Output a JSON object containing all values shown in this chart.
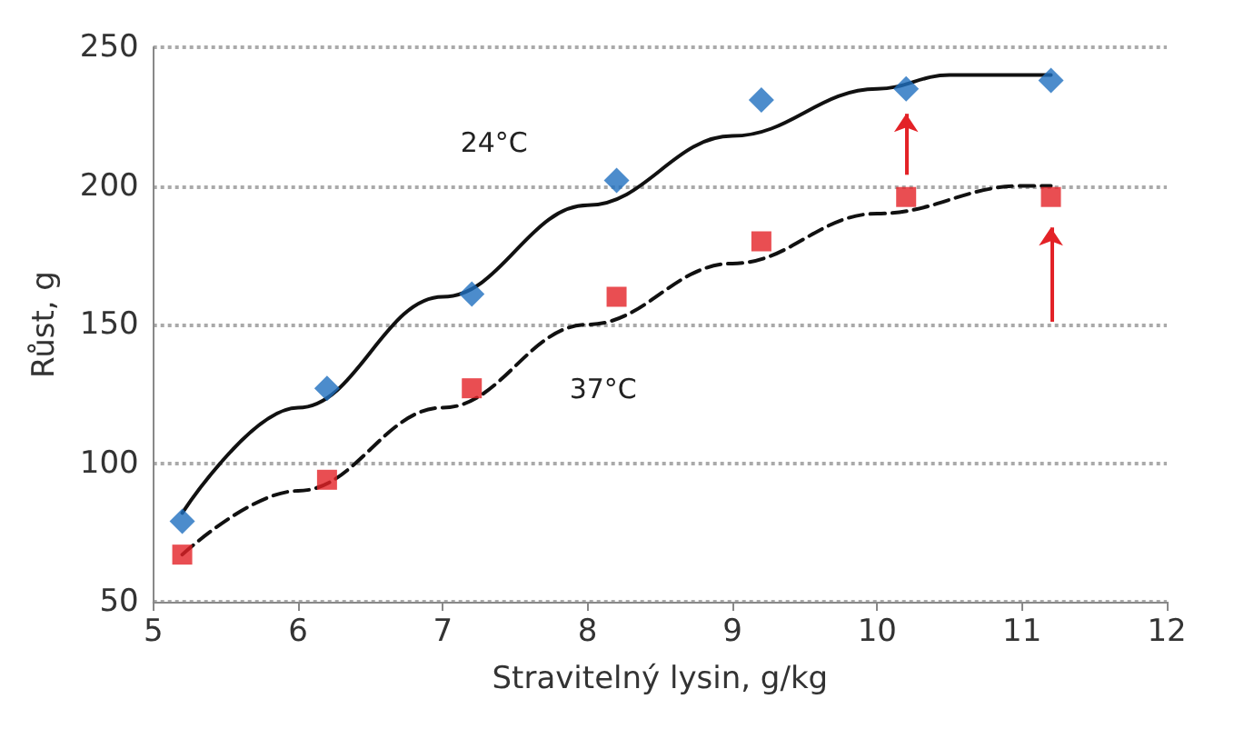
{
  "chart_data": {
    "type": "scatter",
    "xlabel": "Stravitelný lysin, g/kg",
    "ylabel": "Růst, g",
    "xlim": [
      5,
      12
    ],
    "xticks": [
      5,
      6,
      7,
      8,
      9,
      10,
      11,
      12
    ],
    "ylim": [
      50,
      250
    ],
    "yticks": [
      50,
      100,
      150,
      200,
      250
    ],
    "grid": "y",
    "series": [
      {
        "type": "line",
        "name": "24°C",
        "color": "#111111",
        "line_style": "solid",
        "marker": "none",
        "x": [
          5.2,
          6,
          7,
          8,
          9,
          10,
          10.5,
          11.2
        ],
        "values": [
          82,
          120,
          160,
          193,
          218,
          235,
          240,
          240
        ]
      },
      {
        "type": "line",
        "name": "37°C",
        "color": "#111111",
        "line_style": "dashed",
        "marker": "none",
        "x": [
          5.2,
          6,
          7,
          8,
          9,
          10,
          11,
          11.2
        ],
        "values": [
          67,
          90,
          120,
          150,
          172,
          190,
          200,
          200
        ]
      },
      {
        "color": "#1f6fbf",
        "marker": "diamond",
        "x": [
          5.2,
          6.2,
          7.2,
          8.2,
          9.2,
          10.2,
          11.2
        ],
        "values": [
          79,
          127,
          161,
          202,
          231,
          235,
          238
        ]
      },
      {
        "color": "#e32227",
        "marker": "square",
        "x": [
          5.2,
          6.2,
          7.2,
          8.2,
          9.2,
          10.2,
          11.2
        ],
        "values": [
          67,
          94,
          127,
          160,
          180,
          196,
          196
        ]
      }
    ]
  }
}
